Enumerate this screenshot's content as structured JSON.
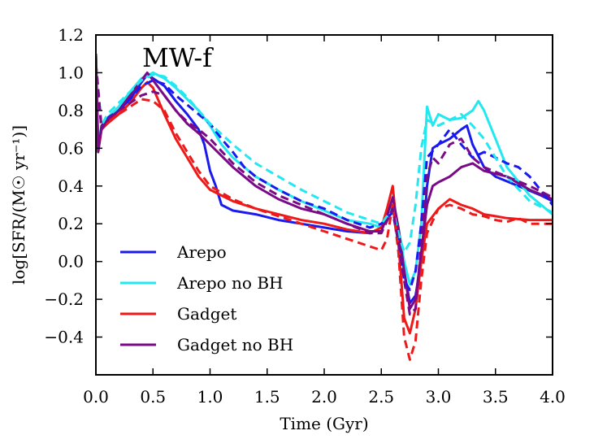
{
  "chart_data": {
    "type": "line",
    "title": "MW-f",
    "xlabel": "Time (Gyr)",
    "ylabel": "log[SFR/(M☉ yr⁻¹)]",
    "xlim": [
      0.0,
      4.0
    ],
    "ylim": [
      -0.6,
      1.2
    ],
    "xticks": [
      "0.0",
      "0.5",
      "1.0",
      "1.5",
      "2.0",
      "2.5",
      "3.0",
      "3.5",
      "4.0"
    ],
    "yticks": [
      "1.2",
      "1.0",
      "0.8",
      "0.6",
      "0.4",
      "0.2",
      "0.0",
      "−0.2",
      "−0.4"
    ],
    "xtick_values": [
      0.0,
      0.5,
      1.0,
      1.5,
      2.0,
      2.5,
      3.0,
      3.5,
      4.0
    ],
    "ytick_values": [
      1.2,
      1.0,
      0.8,
      0.6,
      0.4,
      0.2,
      0.0,
      -0.2,
      -0.4
    ],
    "legend_position": "lower-left",
    "series": [
      {
        "name": "Arepo",
        "color": "#1a1aee",
        "style": "solid",
        "x": [
          0.0,
          0.02,
          0.05,
          0.1,
          0.2,
          0.3,
          0.4,
          0.45,
          0.5,
          0.6,
          0.7,
          0.8,
          0.9,
          0.95,
          1.0,
          1.05,
          1.1,
          1.2,
          1.4,
          1.6,
          1.8,
          2.0,
          2.2,
          2.4,
          2.5,
          2.55,
          2.6,
          2.65,
          2.7,
          2.75,
          2.8,
          2.85,
          2.9,
          2.95,
          3.0,
          3.1,
          3.2,
          3.25,
          3.3,
          3.4,
          3.5,
          3.7,
          3.9,
          4.0
        ],
        "y": [
          1.1,
          0.6,
          0.7,
          0.74,
          0.8,
          0.86,
          0.95,
          0.99,
          0.97,
          0.93,
          0.85,
          0.78,
          0.7,
          0.62,
          0.48,
          0.4,
          0.3,
          0.27,
          0.25,
          0.22,
          0.2,
          0.18,
          0.16,
          0.15,
          0.18,
          0.22,
          0.28,
          0.15,
          -0.05,
          -0.22,
          -0.18,
          0.0,
          0.4,
          0.6,
          0.62,
          0.65,
          0.7,
          0.72,
          0.62,
          0.5,
          0.45,
          0.4,
          0.35,
          0.32
        ]
      },
      {
        "name": "Arepo no BH",
        "color": "#22e8f0",
        "style": "solid",
        "x": [
          0.0,
          0.02,
          0.05,
          0.1,
          0.2,
          0.3,
          0.4,
          0.5,
          0.6,
          0.7,
          0.8,
          0.9,
          1.0,
          1.1,
          1.2,
          1.4,
          1.6,
          1.8,
          2.0,
          2.2,
          2.4,
          2.5,
          2.55,
          2.6,
          2.65,
          2.7,
          2.75,
          2.8,
          2.85,
          2.9,
          2.95,
          3.0,
          3.1,
          3.2,
          3.3,
          3.35,
          3.4,
          3.5,
          3.6,
          3.8,
          4.0
        ],
        "y": [
          1.1,
          0.62,
          0.72,
          0.76,
          0.82,
          0.9,
          0.97,
          1.0,
          0.97,
          0.92,
          0.86,
          0.8,
          0.72,
          0.62,
          0.55,
          0.45,
          0.38,
          0.32,
          0.27,
          0.22,
          0.2,
          0.18,
          0.22,
          0.3,
          0.18,
          0.0,
          -0.12,
          -0.05,
          0.2,
          0.82,
          0.72,
          0.78,
          0.75,
          0.76,
          0.8,
          0.85,
          0.8,
          0.65,
          0.5,
          0.35,
          0.25
        ]
      },
      {
        "name": "Gadget",
        "color": "#ee1a1a",
        "style": "solid",
        "x": [
          0.0,
          0.02,
          0.05,
          0.1,
          0.2,
          0.3,
          0.4,
          0.45,
          0.5,
          0.6,
          0.7,
          0.8,
          0.9,
          1.0,
          1.2,
          1.4,
          1.6,
          1.8,
          2.0,
          2.2,
          2.4,
          2.5,
          2.55,
          2.6,
          2.65,
          2.7,
          2.75,
          2.8,
          2.85,
          2.9,
          3.0,
          3.1,
          3.2,
          3.3,
          3.4,
          3.5,
          3.6,
          3.8,
          4.0
        ],
        "y": [
          1.1,
          0.58,
          0.7,
          0.73,
          0.78,
          0.84,
          0.92,
          0.95,
          0.92,
          0.78,
          0.65,
          0.55,
          0.45,
          0.38,
          0.32,
          0.28,
          0.25,
          0.22,
          0.2,
          0.17,
          0.15,
          0.18,
          0.28,
          0.4,
          0.1,
          -0.3,
          -0.38,
          -0.25,
          0.0,
          0.2,
          0.28,
          0.33,
          0.3,
          0.28,
          0.25,
          0.24,
          0.23,
          0.22,
          0.22
        ]
      },
      {
        "name": "Gadget no BH",
        "color": "#7a0a86",
        "style": "solid",
        "x": [
          0.0,
          0.02,
          0.05,
          0.1,
          0.2,
          0.3,
          0.4,
          0.45,
          0.5,
          0.6,
          0.7,
          0.8,
          0.9,
          1.0,
          1.2,
          1.4,
          1.6,
          1.8,
          2.0,
          2.2,
          2.4,
          2.5,
          2.55,
          2.6,
          2.65,
          2.7,
          2.75,
          2.8,
          2.85,
          2.9,
          2.95,
          3.0,
          3.1,
          3.2,
          3.3,
          3.4,
          3.6,
          3.8,
          4.0
        ],
        "y": [
          1.1,
          0.58,
          0.72,
          0.75,
          0.8,
          0.88,
          0.96,
          1.0,
          0.96,
          0.88,
          0.8,
          0.73,
          0.68,
          0.62,
          0.5,
          0.4,
          0.33,
          0.28,
          0.25,
          0.2,
          0.16,
          0.16,
          0.24,
          0.34,
          0.18,
          -0.05,
          -0.25,
          -0.2,
          0.05,
          0.3,
          0.4,
          0.42,
          0.45,
          0.5,
          0.52,
          0.48,
          0.45,
          0.38,
          0.33
        ]
      },
      {
        "name": "Arepo (dashed)",
        "color": "#1a1aee",
        "style": "dashed",
        "x": [
          0.0,
          0.05,
          0.1,
          0.2,
          0.3,
          0.4,
          0.5,
          0.6,
          0.7,
          0.8,
          0.9,
          1.0,
          1.1,
          1.2,
          1.3,
          1.4,
          1.6,
          1.8,
          2.0,
          2.2,
          2.4,
          2.5,
          2.6,
          2.65,
          2.7,
          2.75,
          2.8,
          2.85,
          2.9,
          3.0,
          3.1,
          3.2,
          3.3,
          3.4,
          3.5,
          3.6,
          3.7,
          3.8,
          4.0
        ],
        "y": [
          1.05,
          0.7,
          0.76,
          0.8,
          0.86,
          0.93,
          0.96,
          0.94,
          0.88,
          0.83,
          0.78,
          0.73,
          0.65,
          0.58,
          0.5,
          0.45,
          0.38,
          0.32,
          0.28,
          0.22,
          0.18,
          0.2,
          0.26,
          0.1,
          -0.1,
          -0.15,
          -0.05,
          0.2,
          0.55,
          0.62,
          0.7,
          0.62,
          0.55,
          0.58,
          0.55,
          0.52,
          0.5,
          0.45,
          0.3
        ]
      },
      {
        "name": "Arepo no BH (dashed)",
        "color": "#22e8f0",
        "style": "dashed",
        "x": [
          0.0,
          0.05,
          0.1,
          0.2,
          0.3,
          0.4,
          0.5,
          0.6,
          0.7,
          0.8,
          0.9,
          1.0,
          1.2,
          1.4,
          1.6,
          1.8,
          2.0,
          2.2,
          2.4,
          2.5,
          2.6,
          2.65,
          2.7,
          2.75,
          2.8,
          2.85,
          2.9,
          3.0,
          3.1,
          3.2,
          3.3,
          3.4,
          3.5,
          3.6,
          3.8,
          4.0
        ],
        "y": [
          1.05,
          0.72,
          0.78,
          0.84,
          0.9,
          0.96,
          0.99,
          0.98,
          0.93,
          0.87,
          0.8,
          0.73,
          0.62,
          0.52,
          0.45,
          0.38,
          0.32,
          0.26,
          0.22,
          0.2,
          0.28,
          0.15,
          0.05,
          0.1,
          0.3,
          0.6,
          0.75,
          0.72,
          0.75,
          0.78,
          0.72,
          0.65,
          0.55,
          0.45,
          0.32,
          0.26
        ]
      },
      {
        "name": "Gadget (dashed)",
        "color": "#ee1a1a",
        "style": "dashed",
        "x": [
          0.0,
          0.05,
          0.1,
          0.2,
          0.3,
          0.4,
          0.5,
          0.6,
          0.7,
          0.8,
          0.9,
          1.0,
          1.2,
          1.4,
          1.6,
          1.8,
          2.0,
          2.2,
          2.3,
          2.4,
          2.5,
          2.55,
          2.6,
          2.65,
          2.7,
          2.75,
          2.8,
          2.85,
          2.9,
          3.0,
          3.1,
          3.2,
          3.3,
          3.4,
          3.5,
          3.6,
          3.7,
          3.8,
          4.0
        ],
        "y": [
          1.05,
          0.7,
          0.74,
          0.78,
          0.82,
          0.86,
          0.85,
          0.8,
          0.68,
          0.58,
          0.48,
          0.4,
          0.33,
          0.28,
          0.24,
          0.2,
          0.16,
          0.12,
          0.1,
          0.08,
          0.06,
          0.12,
          0.3,
          0.05,
          -0.4,
          -0.52,
          -0.42,
          -0.1,
          0.15,
          0.28,
          0.3,
          0.28,
          0.25,
          0.24,
          0.22,
          0.21,
          0.23,
          0.2,
          0.2
        ]
      },
      {
        "name": "Gadget no BH (dashed)",
        "color": "#7a0a86",
        "style": "dashed",
        "x": [
          0.0,
          0.05,
          0.1,
          0.2,
          0.3,
          0.4,
          0.5,
          0.6,
          0.7,
          0.8,
          0.9,
          1.0,
          1.2,
          1.4,
          1.6,
          1.8,
          2.0,
          2.2,
          2.4,
          2.5,
          2.6,
          2.65,
          2.7,
          2.75,
          2.8,
          2.85,
          2.9,
          2.95,
          3.0,
          3.1,
          3.2,
          3.3,
          3.4,
          3.6,
          3.8,
          4.0
        ],
        "y": [
          1.05,
          0.7,
          0.75,
          0.8,
          0.84,
          0.88,
          0.9,
          0.88,
          0.8,
          0.74,
          0.7,
          0.65,
          0.52,
          0.42,
          0.35,
          0.3,
          0.25,
          0.2,
          0.15,
          0.15,
          0.28,
          0.1,
          -0.1,
          -0.28,
          -0.25,
          0.1,
          0.45,
          0.55,
          0.52,
          0.62,
          0.65,
          0.55,
          0.5,
          0.45,
          0.4,
          0.34
        ]
      }
    ],
    "legend": [
      {
        "label": "Arepo",
        "color": "#1a1aee"
      },
      {
        "label": "Arepo no BH",
        "color": "#22e8f0"
      },
      {
        "label": "Gadget",
        "color": "#ee1a1a"
      },
      {
        "label": "Gadget no BH",
        "color": "#7a0a86"
      }
    ]
  }
}
